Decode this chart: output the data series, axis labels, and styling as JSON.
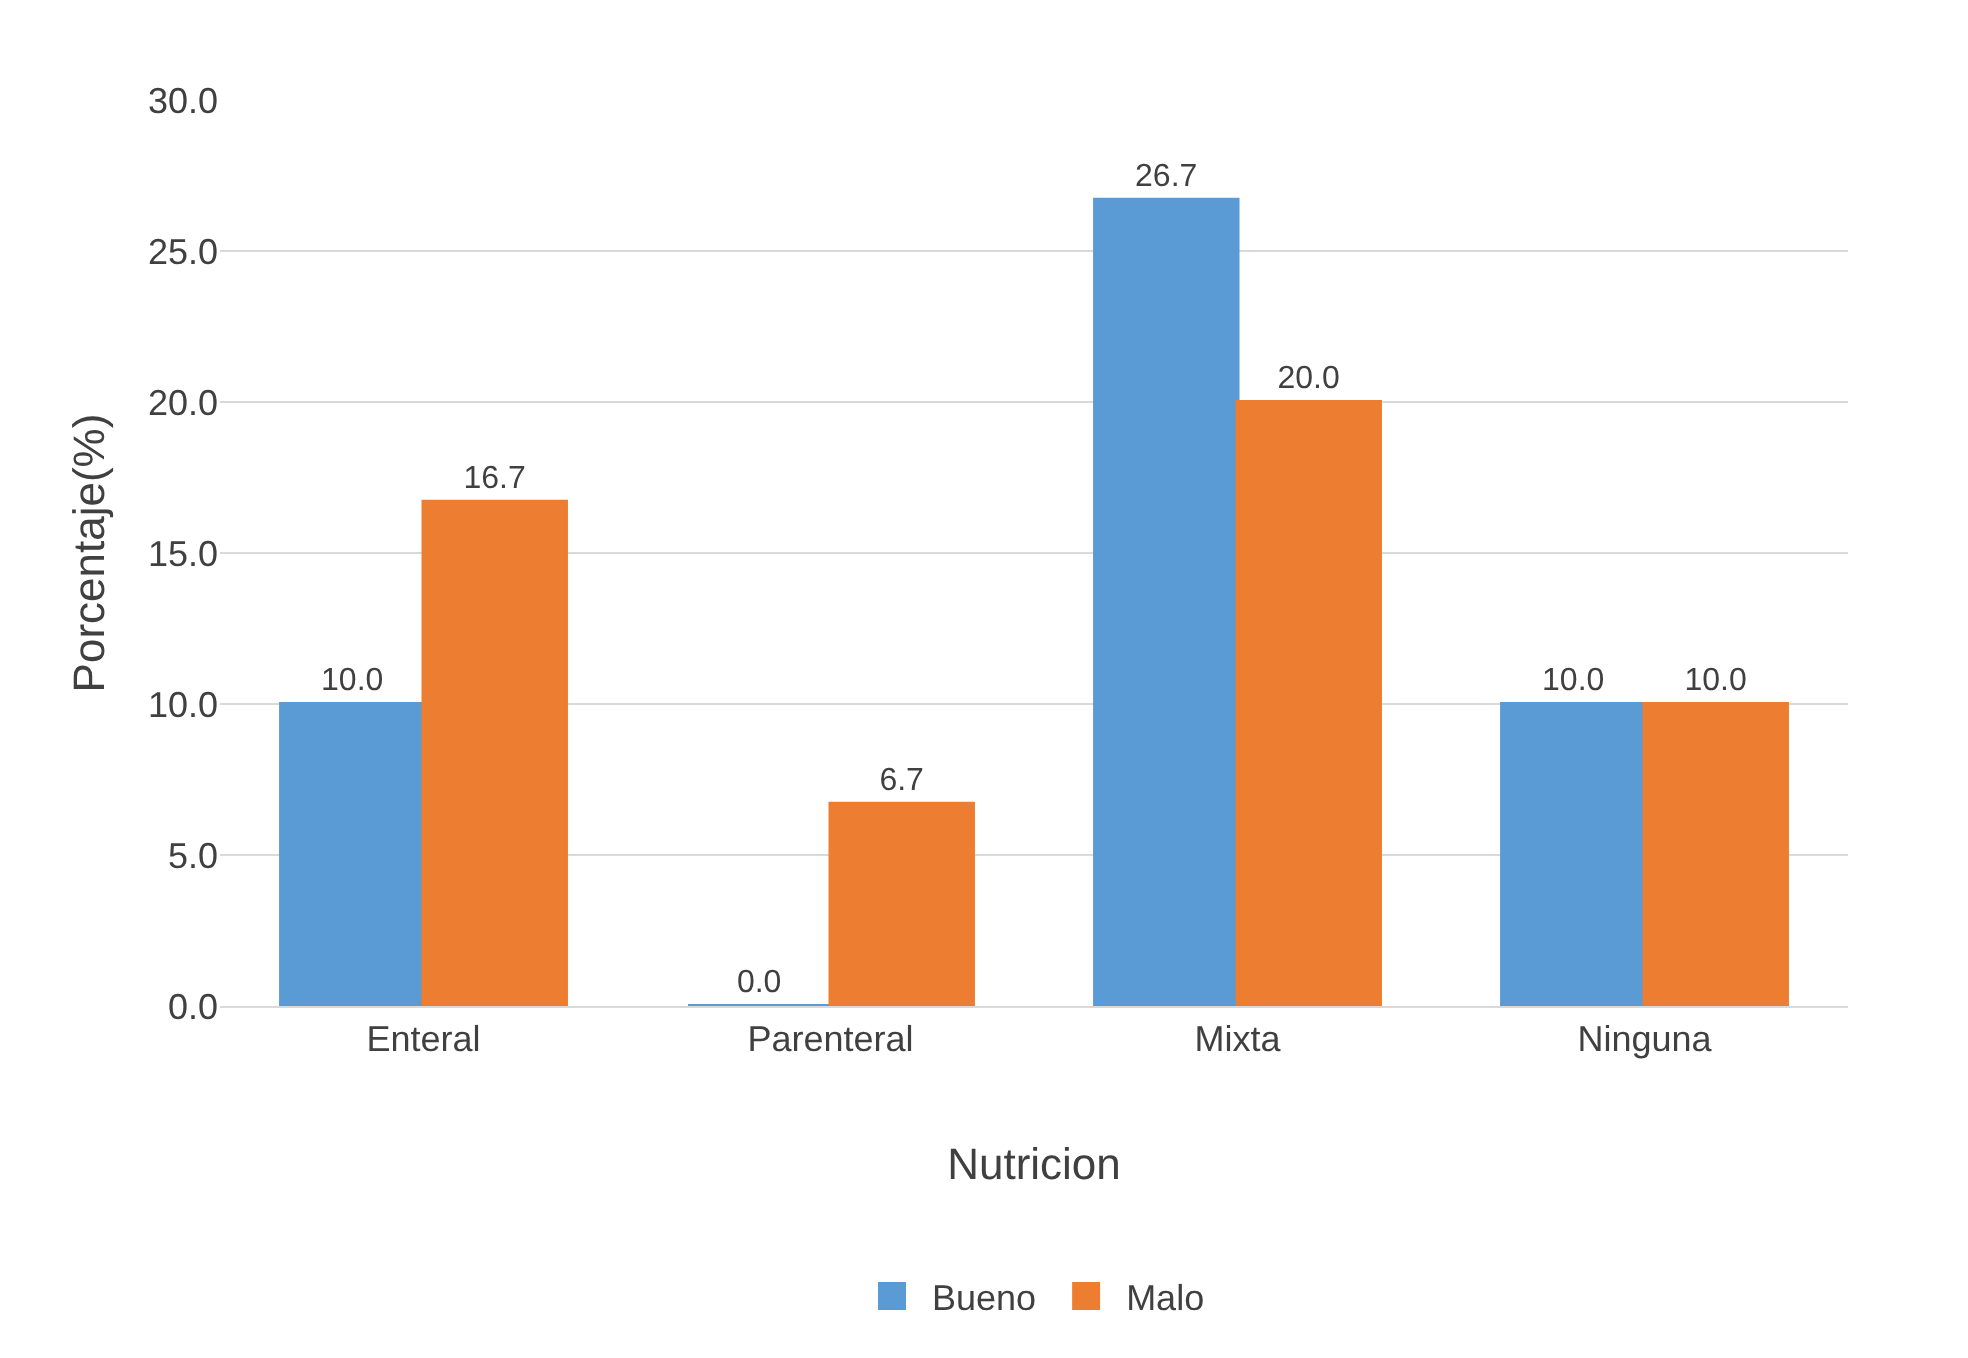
{
  "chart_data": {
    "type": "bar",
    "xlabel": "Nutricion",
    "ylabel": "Porcentaje(%)",
    "categories": [
      "Enteral",
      "Parenteral",
      "Mixta",
      "Ninguna"
    ],
    "series": [
      {
        "name": "Bueno",
        "color": "#5b9bd5",
        "values": [
          10.0,
          0.0,
          26.7,
          10.0
        ],
        "value_labels": [
          "10.0",
          "0.0",
          "26.7",
          "10.0"
        ]
      },
      {
        "name": "Malo",
        "color": "#ed7d31",
        "values": [
          16.7,
          6.7,
          20.0,
          10.0
        ],
        "value_labels": [
          "16.7",
          "6.7",
          "20.0",
          "10.0"
        ]
      }
    ],
    "ylim": [
      0,
      30
    ],
    "yticks": [
      {
        "value": 0,
        "label": "0.0"
      },
      {
        "value": 5,
        "label": "5.0"
      },
      {
        "value": 10,
        "label": "10.0"
      },
      {
        "value": 15,
        "label": "15.0"
      },
      {
        "value": 20,
        "label": "20.0"
      },
      {
        "value": 25,
        "label": "25.0"
      },
      {
        "value": 30,
        "label": "30.0"
      }
    ],
    "grid": "y",
    "legend": "bottom"
  }
}
